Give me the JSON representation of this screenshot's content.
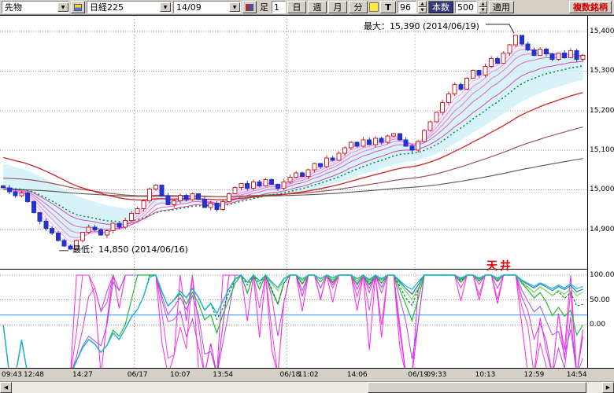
{
  "icons": {
    "down_arrow": "▼",
    "up_arrow": "▲",
    "left_arrow": "◀",
    "right_arrow": "▶"
  },
  "toolbar": {
    "instrument_dropdown": "先物",
    "symbol_dropdown": "日経225",
    "contract_dropdown": "14/09",
    "bar_type_label": "足",
    "interval_value": "1",
    "interval_buttons": [
      "日",
      "週",
      "月",
      "分"
    ],
    "tick_button": "T",
    "bars_value": "96",
    "bars_label": "本数",
    "load_value": "500",
    "apply_button": "適用",
    "multi_symbol_button": "複数銘柄"
  },
  "annotations": {
    "max_label": "最大：15,390 (2014/06/19)",
    "min_label": "最低：14,850 (2014/06/16)",
    "ceiling_label": "天井"
  },
  "colors": {
    "candle_up": "#cc2222",
    "candle_down": "#2233cc",
    "grid": "#999999",
    "cloud": "#c9edf5",
    "fan": [
      "#ffaaff",
      "#ff99f0",
      "#ff85e2",
      "#f570d2",
      "#e55cc2",
      "#d648b2"
    ],
    "ma_green": "#008833",
    "ma_red": "#cc2222",
    "ma_maroon": "#995555",
    "ma_dark": "#555555",
    "connector": "#222222"
  },
  "chart_data": {
    "type": "candlestick+oscillator",
    "main": {
      "y_ticks": [
        {
          "label": "15,400",
          "value": 15400
        },
        {
          "label": "15,300",
          "value": 15300
        },
        {
          "label": "15,200",
          "value": 15200
        },
        {
          "label": "15,100",
          "value": 15100
        },
        {
          "label": "15,000",
          "value": 15000
        },
        {
          "label": "14,900",
          "value": 14900
        }
      ],
      "price_domain": [
        14800,
        15440
      ],
      "open_first": 15010,
      "closes": [
        15005,
        14995,
        14985,
        14992,
        14970,
        14942,
        14920,
        14902,
        14890,
        14872,
        14858,
        14850,
        14872,
        14892,
        14905,
        14898,
        14885,
        14896,
        14915,
        14905,
        14922,
        14940,
        14952,
        14972,
        15002,
        15012,
        14985,
        14962,
        14972,
        14986,
        14975,
        14990,
        14976,
        14955,
        14966,
        14950,
        14970,
        14990,
        15006,
        15016,
        15004,
        15020,
        15010,
        15026,
        15014,
        15004,
        15020,
        15032,
        15042,
        15034,
        15050,
        15066,
        15058,
        15080,
        15074,
        15092,
        15106,
        15120,
        15110,
        15126,
        15114,
        15130,
        15120,
        15136,
        15142,
        15126,
        15110,
        15100,
        15122,
        15150,
        15172,
        15196,
        15220,
        15242,
        15266,
        15254,
        15282,
        15302,
        15290,
        15312,
        15332,
        15320,
        15346,
        15366,
        15390,
        15368,
        15354,
        15340,
        15356,
        15344,
        15330,
        15346,
        15334,
        15352,
        15330,
        15340
      ],
      "day_breaks": [
        22,
        47,
        68
      ],
      "max": {
        "value": 15390,
        "index": 84,
        "date": "2014/06/19"
      },
      "min": {
        "value": 14850,
        "index": 11,
        "date": "2014/06/16"
      }
    },
    "sub": {
      "y_ticks": [
        {
          "label": "100.00",
          "value": 100
        },
        {
          "label": "50.00",
          "value": 50
        },
        {
          "label": "0.00",
          "value": 0
        }
      ],
      "domain": [
        -89,
        111
      ],
      "hline": {
        "value": 20,
        "color": "#55aaff"
      },
      "series": [
        {
          "n": 4,
          "color": "#ff22ee",
          "w": 1
        },
        {
          "n": 6,
          "color": "#ee44cc",
          "w": 1
        },
        {
          "n": 9,
          "color": "#d23ae0",
          "w": 1
        },
        {
          "n": 13,
          "color": "#a050e8",
          "w": 1
        },
        {
          "n": 18,
          "color": "#22bb33",
          "w": 1.2
        },
        {
          "n": 24,
          "color": "#008833",
          "w": 1.2,
          "dash": "3 2"
        },
        {
          "n": 32,
          "color": "#7fd84f",
          "w": 1.2
        },
        {
          "n": 48,
          "color": "#2277cc",
          "w": 1.2
        },
        {
          "n": 64,
          "color": "#11bbdd",
          "w": 1.2
        }
      ]
    },
    "x_ticks": [
      {
        "label": "09:43",
        "i": 0
      },
      {
        "label": "12:48",
        "i": 5
      },
      {
        "label": "14:27",
        "i": 13
      },
      {
        "label": "06/17",
        "i": 22
      },
      {
        "label": "10:07",
        "i": 29
      },
      {
        "label": "13:54",
        "i": 36
      },
      {
        "label": "06/18",
        "i": 47
      },
      {
        "label": "11:02",
        "i": 50
      },
      {
        "label": "14:06",
        "i": 58
      },
      {
        "label": "06/19",
        "i": 68
      },
      {
        "label": "09:33",
        "i": 71
      },
      {
        "label": "10:13",
        "i": 79
      },
      {
        "label": "12:59",
        "i": 87
      },
      {
        "label": "14:54",
        "i": 94
      }
    ]
  }
}
